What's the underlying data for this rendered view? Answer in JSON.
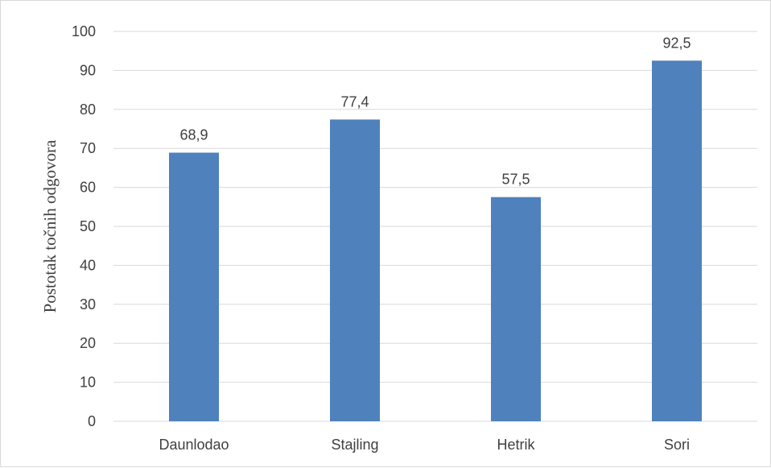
{
  "chart_data": {
    "type": "bar",
    "title": "",
    "xlabel": "",
    "ylabel": "Postotak točnih odgovora",
    "categories": [
      "Daunlodao",
      "Stajling",
      "Hetrik",
      "Sori"
    ],
    "values": [
      68.9,
      77.4,
      57.5,
      92.5
    ],
    "data_labels": [
      "68,9",
      "77,4",
      "57,5",
      "92,5"
    ],
    "ylim": [
      0,
      100
    ],
    "yticks": [
      0,
      10,
      20,
      30,
      40,
      50,
      60,
      70,
      80,
      90,
      100
    ],
    "grid": true,
    "legend": "none",
    "colors": {
      "bar": "#4F81BD",
      "grid": "#d9d9d9",
      "text": "#404040"
    }
  }
}
